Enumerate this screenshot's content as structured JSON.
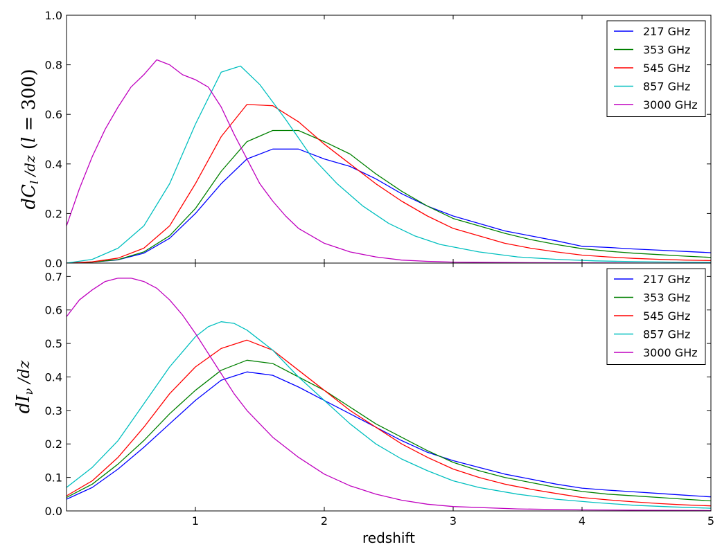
{
  "chart_data": [
    {
      "type": "line",
      "ylabel": "dC_l/dz (l = 300)",
      "xlim": [
        0.0,
        5.0
      ],
      "ylim": [
        0.0,
        1.0
      ],
      "yticks": [
        "0.0",
        "0.2",
        "0.4",
        "0.6",
        "0.8",
        "1.0"
      ],
      "xticks": [],
      "legend_position": "top-right",
      "series": [
        {
          "name": "217 GHz",
          "color": "#0000ff",
          "x": [
            0.0,
            0.2,
            0.4,
            0.6,
            0.8,
            1.0,
            1.2,
            1.4,
            1.6,
            1.8,
            2.0,
            2.2,
            2.4,
            2.6,
            2.8,
            3.0,
            3.2,
            3.4,
            3.6,
            3.8,
            4.0,
            4.2,
            4.4,
            4.6,
            4.8,
            5.0
          ],
          "y": [
            0.0,
            0.004,
            0.013,
            0.04,
            0.1,
            0.2,
            0.32,
            0.42,
            0.46,
            0.46,
            0.42,
            0.39,
            0.34,
            0.28,
            0.23,
            0.19,
            0.16,
            0.13,
            0.11,
            0.09,
            0.068,
            0.063,
            0.057,
            0.052,
            0.047,
            0.042
          ]
        },
        {
          "name": "353 GHz",
          "color": "#008000",
          "x": [
            0.0,
            0.2,
            0.4,
            0.6,
            0.8,
            1.0,
            1.2,
            1.4,
            1.6,
            1.8,
            2.0,
            2.2,
            2.4,
            2.6,
            2.8,
            3.0,
            3.2,
            3.4,
            3.6,
            3.8,
            4.0,
            4.2,
            4.4,
            4.6,
            4.8,
            5.0
          ],
          "y": [
            0.0,
            0.004,
            0.014,
            0.045,
            0.11,
            0.22,
            0.37,
            0.49,
            0.535,
            0.535,
            0.49,
            0.44,
            0.36,
            0.29,
            0.23,
            0.18,
            0.15,
            0.12,
            0.095,
            0.075,
            0.058,
            0.048,
            0.04,
            0.034,
            0.028,
            0.023
          ]
        },
        {
          "name": "545 GHz",
          "color": "#ff0000",
          "x": [
            0.0,
            0.2,
            0.4,
            0.6,
            0.8,
            1.0,
            1.2,
            1.4,
            1.6,
            1.8,
            2.0,
            2.2,
            2.4,
            2.6,
            2.8,
            3.0,
            3.2,
            3.4,
            3.6,
            3.8,
            4.0,
            4.2,
            4.4,
            4.6,
            4.8,
            5.0
          ],
          "y": [
            0.0,
            0.005,
            0.02,
            0.06,
            0.15,
            0.32,
            0.51,
            0.64,
            0.635,
            0.57,
            0.48,
            0.4,
            0.32,
            0.25,
            0.19,
            0.14,
            0.11,
            0.08,
            0.06,
            0.045,
            0.032,
            0.025,
            0.019,
            0.015,
            0.012,
            0.01
          ]
        },
        {
          "name": "857 GHz",
          "color": "#00bfbf",
          "x": [
            0.0,
            0.2,
            0.4,
            0.6,
            0.8,
            1.0,
            1.2,
            1.35,
            1.5,
            1.7,
            1.9,
            2.1,
            2.3,
            2.5,
            2.7,
            2.9,
            3.2,
            3.5,
            3.8,
            4.1,
            4.4,
            4.7,
            5.0
          ],
          "y": [
            0.0,
            0.015,
            0.06,
            0.15,
            0.32,
            0.56,
            0.77,
            0.795,
            0.72,
            0.58,
            0.43,
            0.32,
            0.23,
            0.16,
            0.11,
            0.075,
            0.045,
            0.025,
            0.015,
            0.009,
            0.006,
            0.004,
            0.003
          ]
        },
        {
          "name": "3000 GHz",
          "color": "#bf00bf",
          "x": [
            0.0,
            0.1,
            0.2,
            0.3,
            0.4,
            0.5,
            0.6,
            0.7,
            0.8,
            0.9,
            1.0,
            1.1,
            1.2,
            1.3,
            1.4,
            1.5,
            1.6,
            1.7,
            1.8,
            2.0,
            2.2,
            2.4,
            2.6,
            2.8,
            3.0,
            3.5,
            4.0,
            4.5,
            5.0
          ],
          "y": [
            0.15,
            0.3,
            0.43,
            0.54,
            0.63,
            0.71,
            0.76,
            0.82,
            0.8,
            0.76,
            0.74,
            0.71,
            0.63,
            0.52,
            0.42,
            0.32,
            0.25,
            0.19,
            0.14,
            0.08,
            0.045,
            0.025,
            0.012,
            0.007,
            0.004,
            0.002,
            0.001,
            0.0,
            0.0
          ]
        }
      ]
    },
    {
      "type": "line",
      "xlabel": "redshift",
      "ylabel": "dI_ν/dz",
      "xlim": [
        0.0,
        5.0
      ],
      "ylim": [
        0.0,
        0.74
      ],
      "xticks": [
        "1",
        "2",
        "3",
        "4",
        "5"
      ],
      "yticks": [
        "0.0",
        "0.1",
        "0.2",
        "0.3",
        "0.4",
        "0.5",
        "0.6",
        "0.7"
      ],
      "legend_position": "top-right",
      "series": [
        {
          "name": "217 GHz",
          "color": "#0000ff",
          "x": [
            0.0,
            0.2,
            0.4,
            0.6,
            0.8,
            1.0,
            1.2,
            1.4,
            1.6,
            1.8,
            2.0,
            2.2,
            2.4,
            2.6,
            2.8,
            3.0,
            3.2,
            3.4,
            3.6,
            3.8,
            4.0,
            4.2,
            4.4,
            4.6,
            4.8,
            5.0
          ],
          "y": [
            0.035,
            0.07,
            0.125,
            0.19,
            0.26,
            0.33,
            0.39,
            0.415,
            0.405,
            0.37,
            0.33,
            0.29,
            0.25,
            0.21,
            0.175,
            0.15,
            0.13,
            0.11,
            0.095,
            0.08,
            0.068,
            0.062,
            0.057,
            0.052,
            0.047,
            0.042
          ]
        },
        {
          "name": "353 GHz",
          "color": "#008000",
          "x": [
            0.0,
            0.2,
            0.4,
            0.6,
            0.8,
            1.0,
            1.2,
            1.4,
            1.6,
            1.8,
            2.0,
            2.2,
            2.4,
            2.6,
            2.8,
            3.0,
            3.2,
            3.4,
            3.6,
            3.8,
            4.0,
            4.2,
            4.4,
            4.6,
            4.8,
            5.0
          ],
          "y": [
            0.04,
            0.08,
            0.14,
            0.21,
            0.29,
            0.36,
            0.42,
            0.45,
            0.44,
            0.4,
            0.36,
            0.31,
            0.26,
            0.22,
            0.18,
            0.145,
            0.12,
            0.1,
            0.085,
            0.07,
            0.058,
            0.05,
            0.045,
            0.04,
            0.035,
            0.03
          ]
        },
        {
          "name": "545 GHz",
          "color": "#ff0000",
          "x": [
            0.0,
            0.2,
            0.4,
            0.6,
            0.8,
            1.0,
            1.2,
            1.4,
            1.6,
            1.8,
            2.0,
            2.2,
            2.4,
            2.6,
            2.8,
            3.0,
            3.2,
            3.4,
            3.6,
            3.8,
            4.0,
            4.2,
            4.4,
            4.6,
            4.8,
            5.0
          ],
          "y": [
            0.045,
            0.09,
            0.16,
            0.25,
            0.35,
            0.43,
            0.485,
            0.51,
            0.48,
            0.42,
            0.36,
            0.3,
            0.25,
            0.2,
            0.16,
            0.125,
            0.1,
            0.08,
            0.065,
            0.052,
            0.04,
            0.033,
            0.027,
            0.022,
            0.018,
            0.015
          ]
        },
        {
          "name": "857 GHz",
          "color": "#00bfbf",
          "x": [
            0.0,
            0.2,
            0.4,
            0.6,
            0.8,
            1.0,
            1.1,
            1.2,
            1.3,
            1.4,
            1.6,
            1.8,
            2.0,
            2.2,
            2.4,
            2.6,
            2.8,
            3.0,
            3.2,
            3.5,
            3.8,
            4.1,
            4.4,
            4.7,
            5.0
          ],
          "y": [
            0.07,
            0.13,
            0.21,
            0.32,
            0.43,
            0.52,
            0.55,
            0.565,
            0.56,
            0.54,
            0.48,
            0.4,
            0.33,
            0.26,
            0.2,
            0.155,
            0.12,
            0.09,
            0.07,
            0.05,
            0.035,
            0.025,
            0.017,
            0.012,
            0.008
          ]
        },
        {
          "name": "3000 GHz",
          "color": "#bf00bf",
          "x": [
            0.0,
            0.1,
            0.2,
            0.3,
            0.4,
            0.5,
            0.6,
            0.7,
            0.8,
            0.9,
            1.0,
            1.1,
            1.2,
            1.3,
            1.4,
            1.6,
            1.8,
            2.0,
            2.2,
            2.4,
            2.6,
            2.8,
            3.0,
            3.5,
            4.0,
            4.5,
            5.0
          ],
          "y": [
            0.58,
            0.63,
            0.66,
            0.685,
            0.695,
            0.695,
            0.685,
            0.665,
            0.63,
            0.585,
            0.53,
            0.47,
            0.41,
            0.35,
            0.3,
            0.22,
            0.16,
            0.11,
            0.075,
            0.05,
            0.032,
            0.02,
            0.013,
            0.006,
            0.003,
            0.002,
            0.001
          ]
        }
      ]
    }
  ]
}
